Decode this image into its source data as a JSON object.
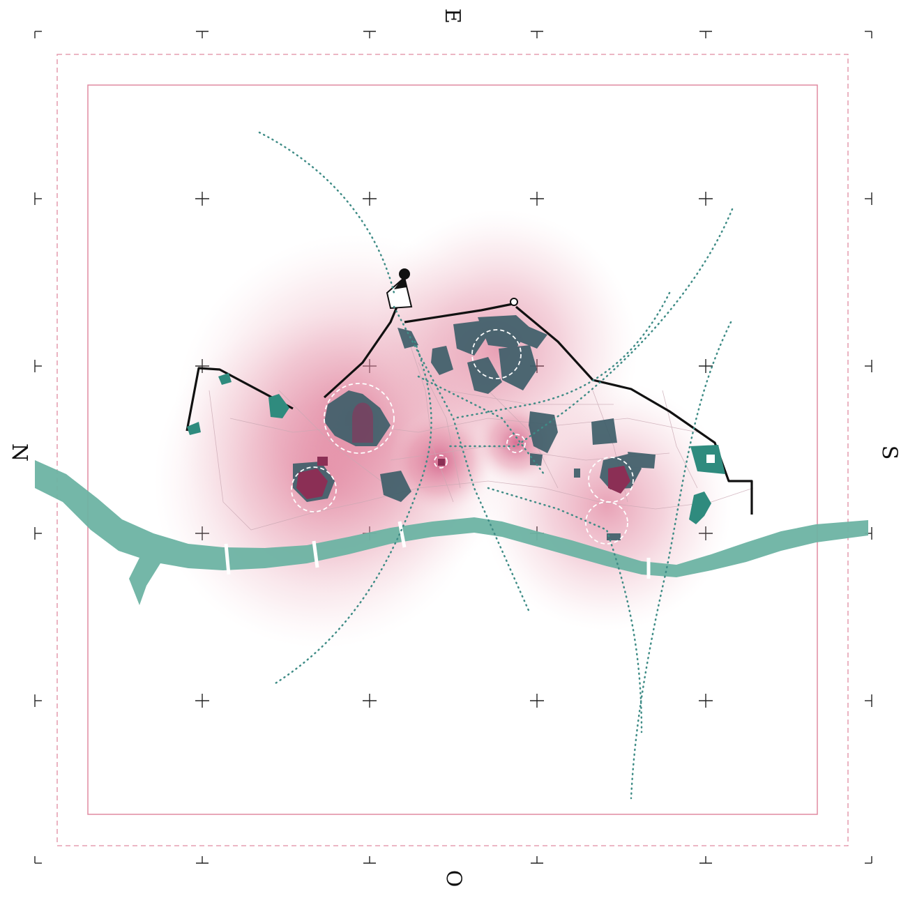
{
  "compass": {
    "north": "N",
    "south": "S",
    "east": "E",
    "west": "O"
  },
  "colors": {
    "influence_zone": "#d6577b",
    "core_center": "#8b2f55",
    "heritage_building": "#3f5f6a",
    "green_space": "#2f8b7e",
    "river": "#6db3a3",
    "dotted_route": "#3f8c86",
    "city_wall": "#111111",
    "frame_border": "#e08aa0"
  },
  "icons": {
    "castle_marker": "castle-keep-icon",
    "center_marker": "center-dashed-circle-icon",
    "grid_mark": "crosshair-icon"
  }
}
